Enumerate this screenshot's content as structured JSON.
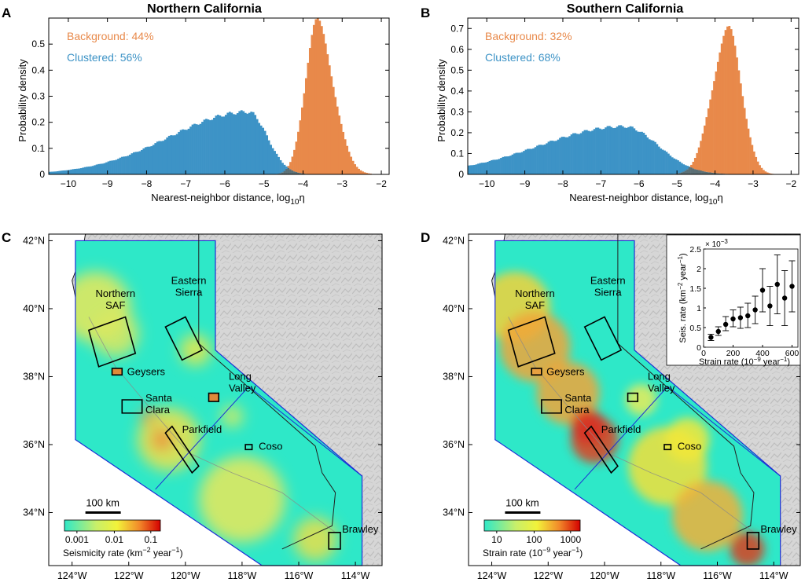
{
  "colors": {
    "background_series": "#e8894a",
    "clustered_series": "#3d93c6",
    "overlap": "#5b6f75",
    "map_sea": "#ffffff",
    "map_land": "#d9d9d9",
    "heat_low": "#2ee8c8",
    "heat_mid": "#f2f23a",
    "heat_high": "#d40000",
    "region_outline": "#1c2fd6"
  },
  "panel_labels": [
    "A",
    "B",
    "C",
    "D"
  ],
  "chart_data": [
    {
      "id": "A",
      "type": "histogram",
      "title": "Northern California",
      "xlabel": "Nearest-neighbor distance, log",
      "xlabel_sub": "10",
      "xlabel_tail": "η",
      "ylabel": "Probability density",
      "xlim": [
        -10.5,
        -1.8
      ],
      "ylim": [
        0,
        0.6
      ],
      "xticks": [
        -10,
        -9,
        -8,
        -7,
        -6,
        -5,
        -4,
        -3,
        -2
      ],
      "yticks": [
        0,
        0.1,
        0.2,
        0.3,
        0.4,
        0.5
      ],
      "series": [
        {
          "name": "Background",
          "label": "Background: 44%",
          "shape": {
            "mu": -3.65,
            "sigL": 0.3,
            "sigR": 0.42,
            "peak": 0.58
          }
        },
        {
          "name": "Clustered",
          "label": "Clustered: 56%",
          "shape": {
            "mu": -5.4,
            "sigL": 2.0,
            "sigR": 0.48,
            "peak": 0.24
          }
        }
      ]
    },
    {
      "id": "B",
      "type": "histogram",
      "title": "Southern California",
      "xlabel": "Nearest-neighbor distance, log",
      "xlabel_sub": "10",
      "xlabel_tail": "η",
      "ylabel": "Probability density",
      "xlim": [
        -10.5,
        -1.8
      ],
      "ylim": [
        0,
        0.75
      ],
      "xticks": [
        -10,
        -9,
        -8,
        -7,
        -6,
        -5,
        -4,
        -3,
        -2
      ],
      "yticks": [
        0,
        0.1,
        0.2,
        0.3,
        0.4,
        0.5,
        0.6,
        0.7
      ],
      "series": [
        {
          "name": "Background",
          "label": "Background: 32%",
          "shape": {
            "mu": -3.65,
            "sigL": 0.42,
            "sigR": 0.35,
            "peak": 0.69
          }
        },
        {
          "name": "Clustered",
          "label": "Clustered: 68%",
          "shape": {
            "mu": -6.4,
            "sigL": 2.2,
            "sigR": 0.9,
            "peak": 0.23
          }
        }
      ]
    },
    {
      "id": "C",
      "type": "heatmap",
      "title": "",
      "xticks": [
        "124°W",
        "122°W",
        "120°W",
        "118°W",
        "116°W",
        "114°W"
      ],
      "yticks": [
        "42°N",
        "40°N",
        "38°N",
        "36°N",
        "34°N"
      ],
      "scalebar": "100 km",
      "regions": [
        "Northern SAF",
        "Eastern Sierra",
        "Geysers",
        "Santa Clara",
        "Long Valley",
        "Parkfield",
        "Coso",
        "Brawley"
      ],
      "colorbar_ticks": [
        "0.001",
        "0.01",
        "0.1"
      ],
      "colorbar_label": "Seismicity rate (km",
      "colorbar_sup": "−2",
      "colorbar_tail": " year",
      "colorbar_sup2": "−1",
      "colorbar_end": ")"
    },
    {
      "id": "D",
      "type": "heatmap",
      "title": "",
      "xticks": [
        "124°W",
        "122°W",
        "120°W",
        "118°W",
        "116°W",
        "114°W"
      ],
      "yticks": [
        "42°N",
        "40°N",
        "38°N",
        "36°N",
        "34°N"
      ],
      "scalebar": "100 km",
      "regions": [
        "Northern SAF",
        "Eastern Sierra",
        "Geysers",
        "Santa Clara",
        "Long Valley",
        "Parkfield",
        "Coso",
        "Brawley"
      ],
      "colorbar_ticks": [
        "10",
        "100",
        "1000"
      ],
      "colorbar_label": "Strain rate (10",
      "colorbar_sup": "−9",
      "colorbar_tail": " year",
      "colorbar_sup2": "−1",
      "colorbar_end": ")"
    },
    {
      "id": "D-inset",
      "type": "scatter",
      "title": "",
      "scale_note": "× 10",
      "scale_exp": "−3",
      "xlabel": "Strain rate (10",
      "xlabel_sup": "−9",
      "xlabel_tail": " year",
      "xlabel_sup2": "−1",
      "xlabel_end": ")",
      "ylabel": "Seis. rate (km",
      "ylabel_sup": "−2",
      "ylabel_tail": " year",
      "ylabel_sup2": "−1",
      "ylabel_end": ")",
      "xlim": [
        0,
        640
      ],
      "ylim": [
        0,
        2.5
      ],
      "xticks": [
        0,
        200,
        400,
        600
      ],
      "yticks": [
        0,
        0.5,
        1,
        1.5,
        2,
        2.5
      ],
      "points": [
        {
          "x": 50,
          "y": 0.25,
          "lo": 0.17,
          "hi": 0.33
        },
        {
          "x": 100,
          "y": 0.4,
          "lo": 0.3,
          "hi": 0.52
        },
        {
          "x": 150,
          "y": 0.58,
          "lo": 0.42,
          "hi": 0.78
        },
        {
          "x": 200,
          "y": 0.72,
          "lo": 0.52,
          "hi": 0.95
        },
        {
          "x": 250,
          "y": 0.75,
          "lo": 0.48,
          "hi": 1.02
        },
        {
          "x": 300,
          "y": 0.8,
          "lo": 0.5,
          "hi": 1.12
        },
        {
          "x": 350,
          "y": 0.95,
          "lo": 0.6,
          "hi": 1.3
        },
        {
          "x": 400,
          "y": 1.45,
          "lo": 0.9,
          "hi": 2.0
        },
        {
          "x": 450,
          "y": 1.05,
          "lo": 0.55,
          "hi": 1.55
        },
        {
          "x": 500,
          "y": 1.6,
          "lo": 0.85,
          "hi": 2.35
        },
        {
          "x": 550,
          "y": 1.25,
          "lo": 0.55,
          "hi": 1.95
        },
        {
          "x": 600,
          "y": 1.55,
          "lo": 0.9,
          "hi": 2.2
        }
      ]
    }
  ]
}
